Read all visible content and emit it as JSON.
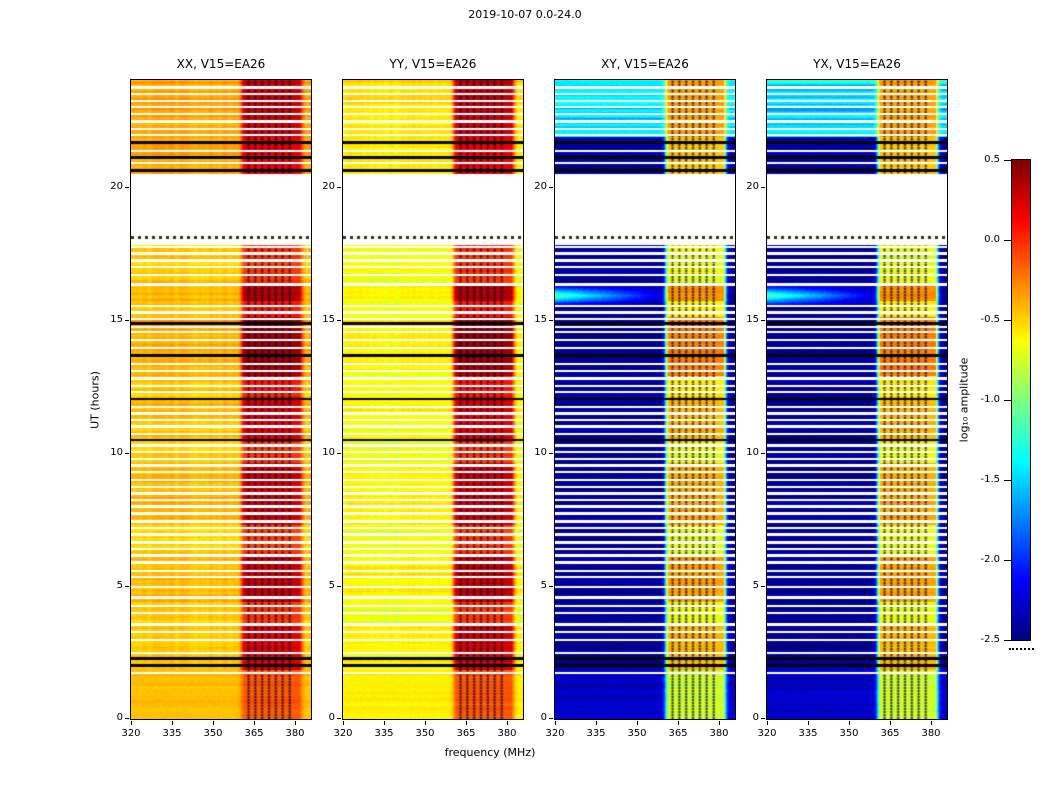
{
  "chart_data": {
    "type": "heatmap",
    "title": "2019-10-07 0.0-24.0",
    "xlabel": "frequency (MHz)",
    "ylabel": "UT (hours)",
    "x_range": [
      320,
      386
    ],
    "y_range": [
      0,
      24
    ],
    "x_ticks": [
      320,
      335,
      350,
      365,
      380
    ],
    "x_tick_labels": [
      "320",
      "335",
      "350",
      "365",
      "380"
    ],
    "y_ticks": [
      0,
      5,
      10,
      15,
      20
    ],
    "y_tick_labels": [
      "0",
      "5",
      "10",
      "15",
      "20"
    ],
    "panels": [
      {
        "id": "xx",
        "title": "XX, V15=EA26",
        "kind": "parallel",
        "base_amplitude": -0.48
      },
      {
        "id": "yy",
        "title": "YY, V15=EA26",
        "kind": "parallel",
        "base_amplitude": -0.68
      },
      {
        "id": "xy",
        "title": "XY, V15=EA26",
        "kind": "cross",
        "base_amplitude": -2.44
      },
      {
        "id": "yx",
        "title": "YX, V15=EA26",
        "kind": "cross",
        "base_amplitude": -2.44
      }
    ],
    "colorbar": {
      "label": "log₁₀ amplitude",
      "tick_values": [
        0.5,
        0.0,
        -0.5,
        -1.0,
        -1.5,
        -2.0,
        -2.5
      ],
      "tick_labels": [
        "0.5",
        "0.0",
        "-0.5",
        "-1.0",
        "-1.5",
        "-2.0",
        "-2.5"
      ],
      "vmin": -2.5,
      "vmax": 0.5,
      "colormap": "jet"
    },
    "features": {
      "rfi_band_mhz": [
        360.5,
        382.5
      ],
      "rfi_column_centers_mhz": [
        361.8,
        364.3,
        366.8,
        369.3,
        371.8,
        374.3,
        376.8,
        379.3,
        381.4
      ],
      "flagged_column_centers_mhz": [
        363.1,
        365.6,
        368.1,
        370.6,
        373.1,
        375.6,
        378.2
      ],
      "large_time_gap_hours": [
        17.82,
        20.47
      ],
      "dotted_scan_hour": 18.08,
      "black_scan_rows_hours": [
        2.02,
        2.28,
        10.48,
        12.02,
        13.65,
        14.85,
        20.6,
        21.1,
        21.65
      ],
      "time_gaps_hours": [
        [
          1.7,
          1.78
        ],
        [
          2.43,
          2.52
        ],
        [
          2.93,
          3.02
        ],
        [
          3.22,
          3.3
        ],
        [
          3.5,
          3.6
        ],
        [
          3.93,
          4.02
        ],
        [
          4.22,
          4.3
        ],
        [
          4.52,
          4.62
        ],
        [
          4.93,
          5.01
        ],
        [
          5.28,
          5.38
        ],
        [
          5.53,
          5.61
        ],
        [
          5.83,
          5.93
        ],
        [
          6.08,
          6.18
        ],
        [
          6.33,
          6.41
        ],
        [
          6.58,
          6.68
        ],
        [
          6.88,
          6.98
        ],
        [
          7.13,
          7.21
        ],
        [
          7.38,
          7.48
        ],
        [
          7.68,
          7.76
        ],
        [
          7.93,
          8.03
        ],
        [
          8.18,
          8.26
        ],
        [
          8.43,
          8.53
        ],
        [
          8.68,
          8.76
        ],
        [
          8.93,
          9.03
        ],
        [
          9.23,
          9.31
        ],
        [
          9.48,
          9.58
        ],
        [
          9.73,
          9.81
        ],
        [
          9.98,
          10.08
        ],
        [
          10.23,
          10.31
        ],
        [
          10.68,
          10.76
        ],
        [
          10.93,
          11.03
        ],
        [
          11.18,
          11.26
        ],
        [
          11.43,
          11.53
        ],
        [
          11.68,
          11.76
        ],
        [
          12.23,
          12.33
        ],
        [
          12.48,
          12.56
        ],
        [
          12.73,
          12.83
        ],
        [
          13.03,
          13.11
        ],
        [
          13.28,
          13.36
        ],
        [
          13.88,
          13.96
        ],
        [
          14.18,
          14.26
        ],
        [
          14.48,
          14.56
        ],
        [
          14.7,
          14.76
        ],
        [
          14.98,
          15.06
        ],
        [
          15.23,
          15.33
        ],
        [
          15.48,
          15.56
        ],
        [
          16.28,
          16.38
        ],
        [
          16.63,
          16.73
        ],
        [
          16.93,
          17.01
        ],
        [
          17.18,
          17.26
        ],
        [
          17.43,
          17.53
        ],
        [
          17.68,
          17.76
        ],
        [
          20.83,
          20.93
        ],
        [
          21.28,
          21.38
        ],
        [
          21.88,
          21.96
        ],
        [
          22.13,
          22.21
        ],
        [
          22.38,
          22.48
        ],
        [
          22.68,
          22.76
        ],
        [
          22.93,
          23.03
        ],
        [
          23.18,
          23.26
        ],
        [
          23.43,
          23.53
        ],
        [
          23.68,
          23.76
        ]
      ],
      "rfi_time_profile": [
        [
          0,
          1.85,
          0.55
        ],
        [
          1.85,
          3.6,
          0.85
        ],
        [
          3.6,
          4.4,
          0.62
        ],
        [
          4.4,
          6.1,
          0.9
        ],
        [
          6.1,
          7.3,
          0.62
        ],
        [
          7.3,
          9.6,
          0.88
        ],
        [
          9.6,
          10.4,
          0.62
        ],
        [
          10.4,
          12.1,
          0.85
        ],
        [
          12.1,
          12.9,
          0.7
        ],
        [
          12.9,
          13.65,
          1.0
        ],
        [
          13.65,
          15.1,
          1.0
        ],
        [
          15.1,
          15.7,
          0.7
        ],
        [
          15.7,
          16.25,
          0.95
        ],
        [
          16.25,
          17.82,
          0.62
        ],
        [
          17.82,
          20.47,
          0.5
        ],
        [
          20.47,
          21.85,
          0.8
        ],
        [
          21.85,
          24.01,
          0.9
        ]
      ],
      "cross_bright_rows_hours": [
        21.85,
        24.0
      ],
      "cross_streak": {
        "time_range_hours": [
          15.5,
          16.3
        ],
        "center_hour": 15.9,
        "max_freq_mhz": 361
      }
    }
  }
}
